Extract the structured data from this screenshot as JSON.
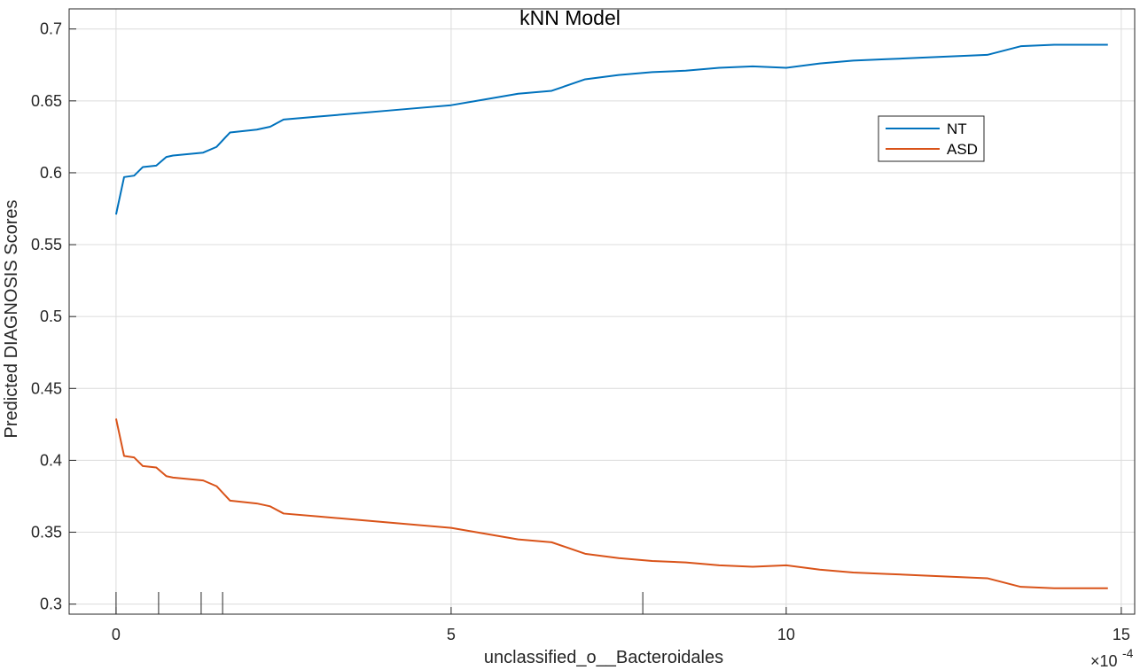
{
  "chart_data": {
    "type": "line",
    "title": "kNN Model",
    "xlabel": "unclassified_o__Bacteroidales",
    "ylabel": "Predicted DIAGNOSIS Scores",
    "x_exponent_label": "×10",
    "x_exponent_power": "-4",
    "xlim": [
      -7e-05,
      0.00152
    ],
    "ylim": [
      0.293,
      0.714
    ],
    "x_ticks": [
      0,
      0.0005,
      0.001,
      0.0015
    ],
    "x_tick_labels": [
      "0",
      "5",
      "10",
      "15"
    ],
    "y_ticks": [
      0.3,
      0.35,
      0.4,
      0.45,
      0.5,
      0.55,
      0.6,
      0.65,
      0.7
    ],
    "y_tick_labels": [
      "0.3",
      "0.35",
      "0.4",
      "0.45",
      "0.5",
      "0.55",
      "0.6",
      "0.65",
      "0.7"
    ],
    "rug_x": [
      0,
      6.35e-05,
      0.000127,
      0.000159,
      0.000786
    ],
    "grid": true,
    "legend_position": "upper-right",
    "x": [
      0,
      1.2e-05,
      2.7e-05,
      4e-05,
      6e-05,
      7.5e-05,
      8.5e-05,
      0.00013,
      0.00015,
      0.00017,
      0.00019,
      0.00021,
      0.00023,
      0.00025,
      0.0003,
      0.00035,
      0.0004,
      0.00045,
      0.0005,
      0.00055,
      0.0006,
      0.00065,
      0.0007,
      0.00075,
      0.0008,
      0.00085,
      0.0009,
      0.00095,
      0.001,
      0.00105,
      0.0011,
      0.00115,
      0.0012,
      0.00125,
      0.0013,
      0.00135,
      0.0014,
      0.00145,
      0.00148
    ],
    "series": [
      {
        "name": "NT",
        "color": "#0072BD",
        "values": [
          0.571,
          0.597,
          0.598,
          0.604,
          0.605,
          0.611,
          0.612,
          0.614,
          0.618,
          0.628,
          0.629,
          0.63,
          0.632,
          0.637,
          0.639,
          0.641,
          0.643,
          0.645,
          0.647,
          0.651,
          0.655,
          0.657,
          0.665,
          0.668,
          0.67,
          0.671,
          0.673,
          0.674,
          0.673,
          0.676,
          0.678,
          0.679,
          0.68,
          0.681,
          0.682,
          0.688,
          0.689,
          0.689,
          0.689
        ]
      },
      {
        "name": "ASD",
        "color": "#D95319",
        "values": [
          0.429,
          0.403,
          0.402,
          0.396,
          0.395,
          0.389,
          0.388,
          0.386,
          0.382,
          0.372,
          0.371,
          0.37,
          0.368,
          0.363,
          0.361,
          0.359,
          0.357,
          0.355,
          0.353,
          0.349,
          0.345,
          0.343,
          0.335,
          0.332,
          0.33,
          0.329,
          0.327,
          0.326,
          0.327,
          0.324,
          0.322,
          0.321,
          0.32,
          0.319,
          0.318,
          0.312,
          0.311,
          0.311,
          0.311
        ]
      }
    ]
  }
}
